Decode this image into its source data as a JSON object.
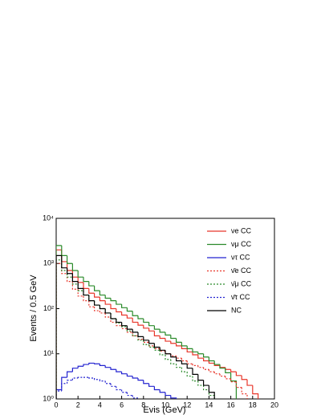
{
  "chart_data": {
    "type": "step-histogram",
    "xlabel": "Evis (GeV)",
    "ylabel": "Events / 0.5 GeV",
    "xlim": [
      0,
      20
    ],
    "ylim": [
      1,
      10000
    ],
    "log_y": true,
    "xticks": [
      0,
      2,
      4,
      6,
      8,
      10,
      12,
      14,
      16,
      18,
      20
    ],
    "yticks": [
      {
        "value": 1,
        "label": "10⁰"
      },
      {
        "value": 10,
        "label": "10¹"
      },
      {
        "value": 100,
        "label": "10²"
      },
      {
        "value": 1000,
        "label": "10³"
      },
      {
        "value": 10000,
        "label": "10⁴"
      }
    ],
    "legend": "upper right",
    "bins": [
      0,
      0.5,
      1,
      1.5,
      2,
      2.5,
      3,
      3.5,
      4,
      4.5,
      5,
      5.5,
      6,
      6.5,
      7,
      7.5,
      8,
      8.5,
      9,
      9.5,
      10,
      10.5,
      11,
      11.5,
      12,
      12.5,
      13,
      13.5,
      14,
      14.5,
      15,
      15.5,
      16,
      16.5,
      17,
      17.5,
      18,
      18.5,
      19,
      19.5,
      20
    ],
    "series": [
      {
        "name": "νe CC",
        "color": "#e8362a",
        "dashed": false,
        "values": [
          2000,
          1100,
          700,
          500,
          380,
          280,
          220,
          180,
          150,
          125,
          100,
          85,
          72,
          62,
          50,
          43,
          37,
          32,
          25,
          22,
          19,
          17,
          15,
          13,
          11,
          9.5,
          8,
          7,
          6.2,
          5.5,
          5,
          4.5,
          4,
          3.3,
          2.7,
          2,
          1.3,
          null,
          null,
          null
        ]
      },
      {
        "name": "νμ CC",
        "color": "#2a8a2a",
        "dashed": false,
        "values": [
          2500,
          1500,
          1000,
          700,
          500,
          400,
          320,
          250,
          200,
          170,
          150,
          125,
          105,
          88,
          70,
          60,
          50,
          42,
          35,
          30,
          26,
          22,
          18,
          15,
          13,
          11,
          10,
          8.5,
          7,
          5.8,
          4.8,
          3.8,
          2.5,
          null,
          null,
          null,
          null,
          null,
          null,
          null
        ]
      },
      {
        "name": "ντ CC",
        "color": "#2323d0",
        "dashed": false,
        "values": [
          1.6,
          3,
          4,
          4.8,
          5.3,
          5.8,
          6.2,
          6,
          5.5,
          5,
          4.5,
          4,
          3.6,
          3.2,
          2.9,
          2.6,
          2.2,
          1.9,
          1.6,
          1.4,
          1.2,
          1.05,
          null,
          null,
          null,
          null,
          null,
          null,
          null,
          null,
          null,
          null,
          null,
          null,
          null,
          null,
          null,
          null,
          null,
          null
        ]
      },
      {
        "name": "ν̄e CC",
        "color": "#e8362a",
        "dashed": true,
        "values": [
          1000,
          600,
          400,
          270,
          190,
          150,
          110,
          90,
          80,
          65,
          50,
          42,
          36,
          30,
          25,
          21,
          18,
          15,
          13,
          11.5,
          10,
          9,
          8,
          7,
          6,
          5.5,
          5,
          4.5,
          4,
          3.6,
          3.2,
          2.8,
          2.4,
          1.8,
          1.3,
          null,
          null,
          null,
          null,
          null
        ]
      },
      {
        "name": "ν̄μ CC",
        "color": "#2a8a2a",
        "dashed": true,
        "values": [
          1200,
          700,
          500,
          350,
          250,
          200,
          150,
          120,
          100,
          80,
          60,
          48,
          40,
          32,
          25,
          20,
          16,
          14,
          12,
          9.5,
          7.5,
          6,
          5,
          4,
          3.2,
          2.5,
          2,
          1.6,
          1.2,
          null,
          null,
          null,
          null,
          null,
          null,
          null,
          null,
          null,
          null,
          null
        ]
      },
      {
        "name": "ν̄τ CC",
        "color": "#2323d0",
        "dashed": true,
        "values": [
          1.5,
          2.2,
          2.6,
          2.9,
          3,
          3,
          2.9,
          2.7,
          2.5,
          2.2,
          1.9,
          1.6,
          1.4,
          1.2,
          1.05,
          null,
          null,
          null,
          null,
          null,
          null,
          null,
          null,
          null,
          null,
          null,
          null,
          null,
          null,
          null,
          null,
          null,
          null,
          null,
          null,
          null,
          null,
          null,
          null,
          null
        ]
      },
      {
        "name": "NC",
        "color": "#000000",
        "dashed": false,
        "values": [
          1500,
          800,
          600,
          400,
          280,
          200,
          150,
          120,
          100,
          80,
          60,
          50,
          42,
          35,
          30,
          24,
          20,
          17,
          14,
          12,
          10,
          8.5,
          7,
          6,
          4.8,
          3.5,
          2.6,
          2,
          1.4,
          null,
          null,
          null,
          null,
          null,
          null,
          null,
          null,
          null,
          null,
          null
        ]
      }
    ]
  }
}
